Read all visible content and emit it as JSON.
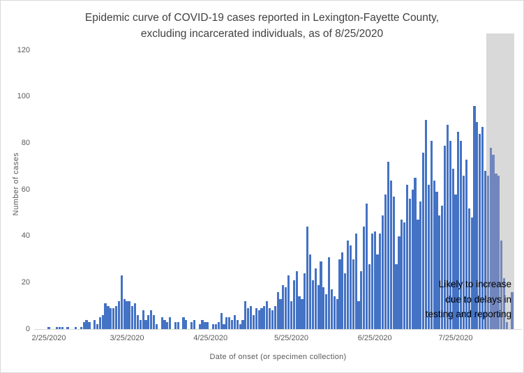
{
  "title": {
    "line1": "Epidemic curve of COVID-19 cases reported in Lexington-Fayette County,",
    "line2": "excluding incarcerated individuals, as of 8/25/2020"
  },
  "y_axis": {
    "label": "Number of cases",
    "ticks": [
      0,
      20,
      40,
      60,
      80,
      100,
      120
    ]
  },
  "x_axis": {
    "label": "Date of onset (or specimen collection)",
    "tick_dates": [
      "2/25/2020",
      "3/25/2020",
      "4/25/2020",
      "5/25/2020",
      "6/25/2020",
      "7/25/2020"
    ]
  },
  "annotation": {
    "lines": [
      "Likely to increase",
      "due to delays in",
      "testing and reporting"
    ]
  },
  "colors": {
    "bar": "#4472C4",
    "bar_shaded": "#7186BC",
    "shade_region": "#D9D9D9",
    "axis_text": "#595959",
    "title_text": "#404040",
    "annotation_text": "#000000",
    "baseline": "#D9D9D9"
  },
  "chart_data": {
    "type": "bar",
    "title": "Epidemic curve of COVID-19 cases reported in Lexington-Fayette County, excluding incarcerated individuals, as of 8/25/2020",
    "xlabel": "Date of onset (or specimen collection)",
    "ylabel": "Number of cases",
    "ylim": [
      0,
      127
    ],
    "grid": false,
    "legend": false,
    "x_tick_labels": [
      "2/25/2020",
      "3/25/2020",
      "4/25/2020",
      "5/25/2020",
      "6/25/2020",
      "7/25/2020"
    ],
    "shaded_from_date": "8/6/2020",
    "shaded_region_note": "Likely to increase due to delays in testing and reporting",
    "dates": [
      "2/25/2020",
      "2/26/2020",
      "2/27/2020",
      "2/28/2020",
      "2/29/2020",
      "3/1/2020",
      "3/2/2020",
      "3/3/2020",
      "3/4/2020",
      "3/5/2020",
      "3/6/2020",
      "3/7/2020",
      "3/8/2020",
      "3/9/2020",
      "3/10/2020",
      "3/11/2020",
      "3/12/2020",
      "3/13/2020",
      "3/14/2020",
      "3/15/2020",
      "3/16/2020",
      "3/17/2020",
      "3/18/2020",
      "3/19/2020",
      "3/20/2020",
      "3/21/2020",
      "3/22/2020",
      "3/23/2020",
      "3/24/2020",
      "3/25/2020",
      "3/26/2020",
      "3/27/2020",
      "3/28/2020",
      "3/29/2020",
      "3/30/2020",
      "3/31/2020",
      "4/1/2020",
      "4/2/2020",
      "4/3/2020",
      "4/4/2020",
      "4/5/2020",
      "4/6/2020",
      "4/7/2020",
      "4/8/2020",
      "4/9/2020",
      "4/10/2020",
      "4/11/2020",
      "4/12/2020",
      "4/13/2020",
      "4/14/2020",
      "4/15/2020",
      "4/16/2020",
      "4/17/2020",
      "4/18/2020",
      "4/19/2020",
      "4/20/2020",
      "4/21/2020",
      "4/22/2020",
      "4/23/2020",
      "4/24/2020",
      "4/25/2020",
      "4/26/2020",
      "4/27/2020",
      "4/28/2020",
      "4/29/2020",
      "4/30/2020",
      "5/1/2020",
      "5/2/2020",
      "5/3/2020",
      "5/4/2020",
      "5/5/2020",
      "5/6/2020",
      "5/7/2020",
      "5/8/2020",
      "5/9/2020",
      "5/10/2020",
      "5/11/2020",
      "5/12/2020",
      "5/13/2020",
      "5/14/2020",
      "5/15/2020",
      "5/16/2020",
      "5/17/2020",
      "5/18/2020",
      "5/19/2020",
      "5/20/2020",
      "5/21/2020",
      "5/22/2020",
      "5/23/2020",
      "5/24/2020",
      "5/25/2020",
      "5/26/2020",
      "5/27/2020",
      "5/28/2020",
      "5/29/2020",
      "5/30/2020",
      "5/31/2020",
      "6/1/2020",
      "6/2/2020",
      "6/3/2020",
      "6/4/2020",
      "6/5/2020",
      "6/6/2020",
      "6/7/2020",
      "6/8/2020",
      "6/9/2020",
      "6/10/2020",
      "6/11/2020",
      "6/12/2020",
      "6/13/2020",
      "6/14/2020",
      "6/15/2020",
      "6/16/2020",
      "6/17/2020",
      "6/18/2020",
      "6/19/2020",
      "6/20/2020",
      "6/21/2020",
      "6/22/2020",
      "6/23/2020",
      "6/24/2020",
      "6/25/2020",
      "6/26/2020",
      "6/27/2020",
      "6/28/2020",
      "6/29/2020",
      "6/30/2020",
      "7/1/2020",
      "7/2/2020",
      "7/3/2020",
      "7/4/2020",
      "7/5/2020",
      "7/6/2020",
      "7/7/2020",
      "7/8/2020",
      "7/9/2020",
      "7/10/2020",
      "7/11/2020",
      "7/12/2020",
      "7/13/2020",
      "7/14/2020",
      "7/15/2020",
      "7/16/2020",
      "7/17/2020",
      "7/18/2020",
      "7/19/2020",
      "7/20/2020",
      "7/21/2020",
      "7/22/2020",
      "7/23/2020",
      "7/24/2020",
      "7/25/2020",
      "7/26/2020",
      "7/27/2020",
      "7/28/2020",
      "7/29/2020",
      "7/30/2020",
      "7/31/2020",
      "8/1/2020",
      "8/2/2020",
      "8/3/2020",
      "8/4/2020",
      "8/5/2020",
      "8/6/2020",
      "8/7/2020",
      "8/8/2020",
      "8/9/2020",
      "8/10/2020",
      "8/11/2020",
      "8/12/2020",
      "8/13/2020",
      "8/14/2020",
      "8/15/2020"
    ],
    "values": [
      1,
      0,
      0,
      1,
      1,
      1,
      0,
      1,
      0,
      0,
      1,
      0,
      1,
      3,
      4,
      3,
      0,
      4,
      2,
      5,
      6,
      11,
      10,
      9,
      9,
      10,
      12,
      23,
      13,
      12,
      12,
      10,
      11,
      6,
      4,
      8,
      4,
      6,
      8,
      6,
      2,
      0,
      5,
      4,
      3,
      5,
      0,
      3,
      3,
      0,
      5,
      4,
      0,
      3,
      4,
      0,
      2,
      4,
      3,
      3,
      0,
      2,
      2,
      3,
      7,
      2,
      5,
      5,
      4,
      6,
      4,
      2,
      4,
      12,
      9,
      10,
      6,
      9,
      8,
      9,
      10,
      12,
      9,
      8,
      10,
      16,
      13,
      19,
      18,
      23,
      12,
      21,
      25,
      14,
      13,
      24,
      44,
      32,
      21,
      26,
      19,
      29,
      18,
      15,
      31,
      17,
      14,
      13,
      30,
      33,
      24,
      38,
      36,
      30,
      41,
      12,
      25,
      44,
      54,
      28,
      41,
      42,
      32,
      41,
      49,
      58,
      72,
      64,
      57,
      28,
      40,
      47,
      46,
      62,
      56,
      60,
      65,
      47,
      55,
      76,
      90,
      62,
      81,
      64,
      59,
      49,
      53,
      79,
      88,
      81,
      69,
      58,
      85,
      81,
      66,
      73,
      52,
      48,
      96,
      89,
      84,
      87,
      68,
      66,
      78,
      75,
      67,
      66,
      38,
      22,
      3,
      0,
      16
    ]
  }
}
